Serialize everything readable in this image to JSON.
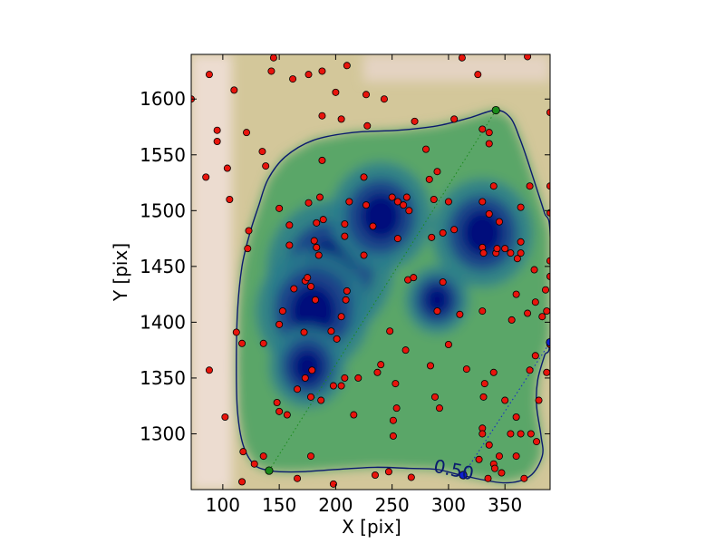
{
  "chart_data": {
    "type": "scatter",
    "xlabel": "X [pix]",
    "ylabel": "Y [pix]",
    "xlim": [
      72,
      390
    ],
    "ylim": [
      1250,
      1640
    ],
    "xticks": [
      "100",
      "150",
      "200",
      "250",
      "300",
      "350"
    ],
    "yticks": [
      "1300",
      "1350",
      "1400",
      "1450",
      "1500",
      "1550",
      "1600"
    ],
    "xtick_values": [
      100,
      150,
      200,
      250,
      300,
      350
    ],
    "ytick_values": [
      1300,
      1350,
      1400,
      1450,
      1500,
      1550,
      1600
    ],
    "contour_label": "0.50",
    "contour_level": 0.5,
    "grid": false,
    "colors": {
      "points": "#e8140c",
      "contour": "#0a1a6e",
      "endpoint_green": "#1a8a1a",
      "endpoint_blue": "#1020d0",
      "density_low": "#f6ecec",
      "density_mid": "#3e9e5e",
      "density_high": "#00087a"
    },
    "background": "gist_earth density map (dense = dark blue, sparse = pale pink)",
    "density_peaks": [
      {
        "x": 195,
        "y": 1448,
        "strength": 1.0
      },
      {
        "x": 180,
        "y": 1410,
        "strength": 0.9
      },
      {
        "x": 240,
        "y": 1495,
        "strength": 0.8
      },
      {
        "x": 330,
        "y": 1480,
        "strength": 0.8
      },
      {
        "x": 175,
        "y": 1360,
        "strength": 0.6
      },
      {
        "x": 290,
        "y": 1420,
        "strength": 0.5
      }
    ],
    "points": [
      [
        72,
        1600
      ],
      [
        88,
        1622
      ],
      [
        95,
        1572
      ],
      [
        95,
        1562
      ],
      [
        85,
        1530
      ],
      [
        110,
        1608
      ],
      [
        106,
        1510
      ],
      [
        143,
        1625
      ],
      [
        145,
        1637
      ],
      [
        162,
        1618
      ],
      [
        176,
        1622
      ],
      [
        188,
        1625
      ],
      [
        210,
        1630
      ],
      [
        200,
        1606
      ],
      [
        188,
        1585
      ],
      [
        205,
        1582
      ],
      [
        227,
        1604
      ],
      [
        228,
        1576
      ],
      [
        243,
        1600
      ],
      [
        312,
        1637
      ],
      [
        326,
        1622
      ],
      [
        305,
        1582
      ],
      [
        330,
        1573
      ],
      [
        336,
        1570
      ],
      [
        336,
        1560
      ],
      [
        370,
        1638
      ],
      [
        390,
        1588
      ],
      [
        135,
        1553
      ],
      [
        150,
        1502
      ],
      [
        159,
        1487
      ],
      [
        159,
        1469
      ],
      [
        176,
        1507
      ],
      [
        186,
        1512
      ],
      [
        183,
        1489
      ],
      [
        189,
        1492
      ],
      [
        208,
        1488
      ],
      [
        212,
        1508
      ],
      [
        227,
        1505
      ],
      [
        233,
        1486
      ],
      [
        250,
        1512
      ],
      [
        255,
        1508
      ],
      [
        260,
        1505
      ],
      [
        263,
        1512
      ],
      [
        265,
        1500
      ],
      [
        255,
        1475
      ],
      [
        283,
        1528
      ],
      [
        290,
        1535
      ],
      [
        287,
        1510
      ],
      [
        300,
        1508
      ],
      [
        305,
        1483
      ],
      [
        295,
        1480
      ],
      [
        285,
        1476
      ],
      [
        340,
        1522
      ],
      [
        330,
        1508
      ],
      [
        336,
        1497
      ],
      [
        345,
        1490
      ],
      [
        364,
        1503
      ],
      [
        372,
        1522
      ],
      [
        390,
        1522
      ],
      [
        390,
        1498
      ],
      [
        123,
        1482
      ],
      [
        122,
        1466
      ],
      [
        181,
        1473
      ],
      [
        183,
        1467
      ],
      [
        185,
        1460
      ],
      [
        208,
        1477
      ],
      [
        225,
        1460
      ],
      [
        173,
        1437
      ],
      [
        178,
        1432
      ],
      [
        175,
        1440
      ],
      [
        182,
        1420
      ],
      [
        163,
        1430
      ],
      [
        210,
        1428
      ],
      [
        209,
        1420
      ],
      [
        205,
        1405
      ],
      [
        196,
        1392
      ],
      [
        201,
        1385
      ],
      [
        172,
        1391
      ],
      [
        153,
        1410
      ],
      [
        150,
        1398
      ],
      [
        112,
        1391
      ],
      [
        117,
        1381
      ],
      [
        136,
        1381
      ],
      [
        264,
        1438
      ],
      [
        295,
        1436
      ],
      [
        290,
        1410
      ],
      [
        310,
        1407
      ],
      [
        248,
        1392
      ],
      [
        262,
        1375
      ],
      [
        284,
        1361
      ],
      [
        240,
        1362
      ],
      [
        237,
        1355
      ],
      [
        253,
        1345
      ],
      [
        254,
        1323
      ],
      [
        220,
        1350
      ],
      [
        205,
        1343
      ],
      [
        208,
        1350
      ],
      [
        198,
        1343
      ],
      [
        179,
        1357
      ],
      [
        178,
        1333
      ],
      [
        166,
        1340
      ],
      [
        173,
        1350
      ],
      [
        187,
        1330
      ],
      [
        148,
        1328
      ],
      [
        150,
        1320
      ],
      [
        157,
        1317
      ],
      [
        216,
        1317
      ],
      [
        251,
        1312
      ],
      [
        251,
        1298
      ],
      [
        288,
        1333
      ],
      [
        292,
        1323
      ],
      [
        316,
        1358
      ],
      [
        332,
        1345
      ],
      [
        331,
        1333
      ],
      [
        340,
        1355
      ],
      [
        330,
        1305
      ],
      [
        336,
        1290
      ],
      [
        330,
        1300
      ],
      [
        345,
        1280
      ],
      [
        355,
        1300
      ],
      [
        360,
        1315
      ],
      [
        364,
        1300
      ],
      [
        360,
        1280
      ],
      [
        372,
        1357
      ],
      [
        377,
        1370
      ],
      [
        383,
        1405
      ],
      [
        387,
        1410
      ],
      [
        387,
        1355
      ],
      [
        390,
        1380
      ],
      [
        378,
        1293
      ],
      [
        373,
        1300
      ],
      [
        340,
        1273
      ],
      [
        341,
        1269
      ],
      [
        347,
        1265
      ],
      [
        327,
        1277
      ],
      [
        335,
        1260
      ],
      [
        367,
        1260
      ],
      [
        118,
        1284
      ],
      [
        117,
        1257
      ],
      [
        102,
        1315
      ],
      [
        88,
        1357
      ],
      [
        128,
        1273
      ],
      [
        136,
        1280
      ],
      [
        166,
        1260
      ],
      [
        178,
        1280
      ],
      [
        198,
        1255
      ],
      [
        235,
        1263
      ],
      [
        247,
        1266
      ],
      [
        267,
        1261
      ],
      [
        342,
        1462
      ],
      [
        343,
        1466
      ],
      [
        350,
        1466
      ],
      [
        355,
        1462
      ],
      [
        364,
        1472
      ],
      [
        364,
        1462
      ],
      [
        361,
        1457
      ],
      [
        356,
        1402
      ],
      [
        370,
        1408
      ],
      [
        360,
        1425
      ],
      [
        377,
        1418
      ],
      [
        376,
        1447
      ],
      [
        390,
        1441
      ],
      [
        390,
        1455
      ],
      [
        386,
        1429
      ],
      [
        330,
        1467
      ],
      [
        331,
        1462
      ],
      [
        269,
        1440
      ],
      [
        330,
        1410
      ],
      [
        300,
        1380
      ],
      [
        350,
        1330
      ],
      [
        380,
        1330
      ],
      [
        138,
        1540
      ],
      [
        104,
        1538
      ],
      [
        121,
        1570
      ],
      [
        270,
        1580
      ],
      [
        280,
        1555
      ],
      [
        225,
        1530
      ],
      [
        188,
        1545
      ]
    ],
    "contour_path": [
      [
        141,
        1267
      ],
      [
        128,
        1272
      ],
      [
        118,
        1290
      ],
      [
        113,
        1320
      ],
      [
        112,
        1360
      ],
      [
        113,
        1410
      ],
      [
        117,
        1450
      ],
      [
        124,
        1480
      ],
      [
        132,
        1505
      ],
      [
        140,
        1528
      ],
      [
        155,
        1548
      ],
      [
        180,
        1563
      ],
      [
        215,
        1570
      ],
      [
        255,
        1572
      ],
      [
        290,
        1576
      ],
      [
        318,
        1583
      ],
      [
        342,
        1590
      ],
      [
        355,
        1583
      ],
      [
        363,
        1565
      ],
      [
        370,
        1545
      ],
      [
        378,
        1520
      ],
      [
        385,
        1498
      ],
      [
        390,
        1480
      ],
      [
        390,
        1385
      ],
      [
        385,
        1370
      ],
      [
        379,
        1348
      ],
      [
        378,
        1325
      ],
      [
        382,
        1298
      ],
      [
        383,
        1280
      ],
      [
        372,
        1262
      ],
      [
        350,
        1256
      ],
      [
        315,
        1262
      ],
      [
        290,
        1268
      ],
      [
        265,
        1269
      ],
      [
        235,
        1270
      ],
      [
        200,
        1268
      ],
      [
        170,
        1266
      ],
      [
        150,
        1266
      ],
      [
        141,
        1267
      ]
    ],
    "connector_lines": [
      {
        "from": [
          141,
          1267
        ],
        "to": [
          342,
          1590
        ],
        "color": "endpoint_green"
      },
      {
        "from": [
          313,
          1263
        ],
        "to": [
          390,
          1382
        ],
        "color": "endpoint_blue"
      }
    ],
    "endpoints": [
      {
        "x": 141,
        "y": 1267,
        "color": "endpoint_green"
      },
      {
        "x": 342,
        "y": 1590,
        "color": "endpoint_green"
      },
      {
        "x": 313,
        "y": 1263,
        "color": "endpoint_blue"
      },
      {
        "x": 390,
        "y": 1382,
        "color": "endpoint_blue"
      }
    ],
    "contour_label_position": {
      "x": 286,
      "y": 1266
    }
  }
}
